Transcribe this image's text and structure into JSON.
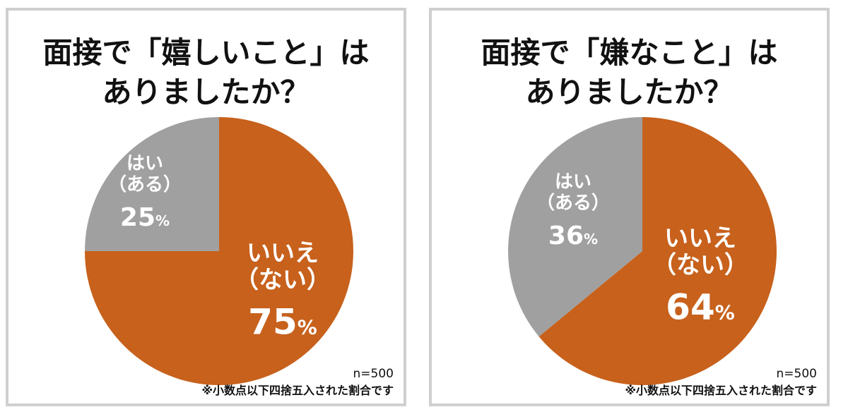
{
  "chart_data": [
    {
      "type": "pie",
      "title_lines": [
        "面接で「嬉しいこと」は",
        "ありましたか？"
      ],
      "slices": [
        {
          "label_lines": [
            "いいえ",
            "（ない）"
          ],
          "value": 75,
          "value_text": "75",
          "color": "#c7611c"
        },
        {
          "label_lines": [
            "はい",
            "（ある）"
          ],
          "value": 25,
          "value_text": "25",
          "color": "#a0a0a0"
        }
      ],
      "unit": "%",
      "sample": "n=500",
      "note": "※小数点以下四捨五入された割合です"
    },
    {
      "type": "pie",
      "title_lines": [
        "面接で「嫌なこと」は",
        "ありましたか？"
      ],
      "slices": [
        {
          "label_lines": [
            "いいえ",
            "（ない）"
          ],
          "value": 64,
          "value_text": "64",
          "color": "#c7611c"
        },
        {
          "label_lines": [
            "はい",
            "（ある）"
          ],
          "value": 36,
          "value_text": "36",
          "color": "#a0a0a0"
        }
      ],
      "unit": "%",
      "sample": "n=500",
      "note": "※小数点以下四捨五入された割合です"
    }
  ]
}
